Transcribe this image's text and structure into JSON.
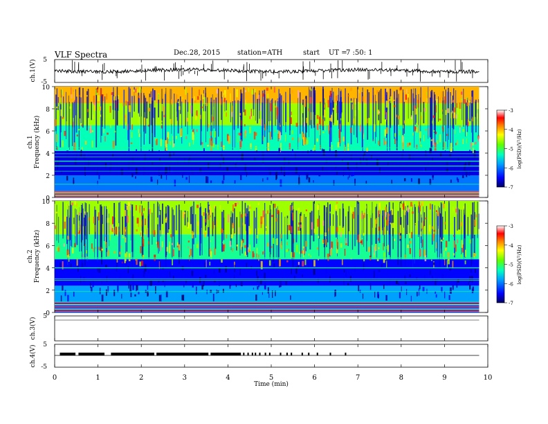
{
  "header": {
    "title": "VLF  Spectra",
    "date": "Dec.28, 2015",
    "station": "station=ATH",
    "start_label": "start",
    "ut_label": "UT  =",
    "time": "7  :50: 1"
  },
  "chart_data": [
    {
      "type": "line",
      "panel": "ch1",
      "ylabel": "ch.1(V)",
      "ylim": [
        -5,
        5
      ],
      "ytick_labels": [
        "5",
        "-5"
      ],
      "signal": "noisy waveform near 0 V with spikes"
    },
    {
      "type": "heatmap",
      "panel": "ch1-spectrogram",
      "ylabel": "ch.1\nFrequency  (kHz)",
      "ylim": [
        0,
        10
      ],
      "yticks": [
        "0",
        "2",
        "4",
        "6",
        "8",
        "10"
      ],
      "colorbar": {
        "label": "log(PSD)(V²/Hz)",
        "range": [
          -7,
          -3
        ],
        "ticks": [
          "-3",
          "-4",
          "-5",
          "-6",
          "-7"
        ],
        "colors": [
          "#000080",
          "#0000ff",
          "#00a0ff",
          "#00ffc0",
          "#60ff00",
          "#ffff00",
          "#ff8000",
          "#ff0000",
          "#ffffff"
        ]
      },
      "bands": [
        {
          "from": 0,
          "to": 0.6,
          "level": "mixed lines"
        },
        {
          "from": 0.6,
          "to": 2.0,
          "level": -6.0
        },
        {
          "from": 2.0,
          "to": 4.2,
          "level": -6.6
        },
        {
          "from": 4.2,
          "to": 6.5,
          "level": -5.3
        },
        {
          "from": 6.5,
          "to": 8.5,
          "level": -4.6
        },
        {
          "from": 8.5,
          "to": 10,
          "level": -4.0
        }
      ]
    },
    {
      "type": "heatmap",
      "panel": "ch2-spectrogram",
      "ylabel": "ch.2\nFrequency  (kHz)",
      "ylim": [
        0,
        10
      ],
      "yticks": [
        "0",
        "2",
        "4",
        "6",
        "8",
        "10"
      ],
      "colorbar": {
        "label": "log(PSD)(V²/Hz)",
        "range": [
          -7,
          -3
        ],
        "ticks": [
          "-3",
          "-4",
          "-5",
          "-6",
          "-7"
        ]
      },
      "bands": [
        {
          "from": 0,
          "to": 1.0,
          "level": "mixed lines"
        },
        {
          "from": 1.0,
          "to": 2.4,
          "level": -5.8
        },
        {
          "from": 2.4,
          "to": 4.8,
          "level": -6.5
        },
        {
          "from": 4.8,
          "to": 7.0,
          "level": -5.2
        },
        {
          "from": 7.0,
          "to": 10,
          "level": -4.6
        }
      ]
    },
    {
      "type": "line",
      "panel": "ch3",
      "ylabel": "ch.3(V)",
      "ylim": [
        -5,
        5
      ],
      "ytick_labels": [
        "5"
      ],
      "signal": "flat near 0 V"
    },
    {
      "type": "line",
      "panel": "ch4",
      "ylabel": "ch.4(V)",
      "ylim": [
        -5,
        5
      ],
      "ytick_labels": [
        "5",
        "-5"
      ],
      "signal": "pulses near 0 V, dense from 0.1 to 4.3 min then sparse to 6.7 min"
    }
  ],
  "xaxis": {
    "label": "Time  (min)",
    "xlim": [
      0,
      10
    ],
    "ticks": [
      "0",
      "1",
      "2",
      "3",
      "4",
      "5",
      "6",
      "7",
      "8",
      "9",
      "10"
    ],
    "data_end": 9.8
  }
}
